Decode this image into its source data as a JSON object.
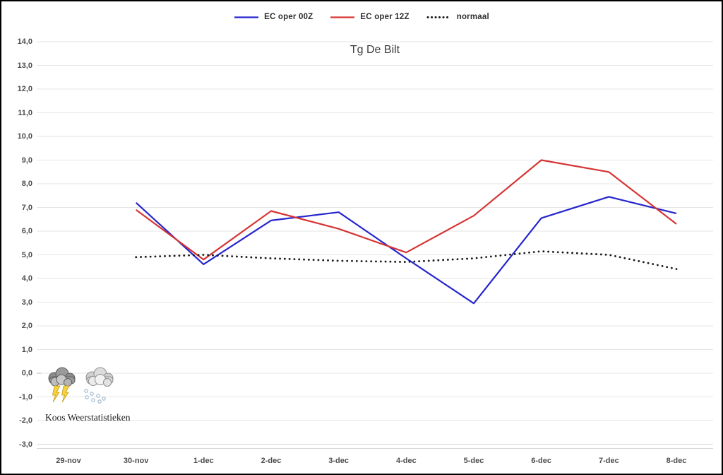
{
  "window": {
    "background": "#ffffff",
    "border_color": "#000000"
  },
  "legend": {
    "items": [
      {
        "name": "EC oper 00Z",
        "color": "#2525cd",
        "style": "solid"
      },
      {
        "name": "EC oper 12Z",
        "color": "#d63434",
        "style": "solid"
      },
      {
        "name": "normaal",
        "color": "#1a1a1a",
        "style": "dotted"
      }
    ]
  },
  "branding": {
    "credit": "Koos Weerstatistieken",
    "icons": [
      {
        "name": "thunderstorm-icon"
      },
      {
        "name": "snow-shower-icon"
      }
    ]
  },
  "chart_data": {
    "type": "line",
    "title": "Tg De Bilt",
    "xlabel": "",
    "ylabel": "",
    "categories": [
      "29-nov",
      "30-nov",
      "1-dec",
      "2-dec",
      "3-dec",
      "4-dec",
      "5-dec",
      "6-dec",
      "7-dec",
      "8-dec"
    ],
    "series": [
      {
        "name": "EC oper 00Z",
        "color": "#2525cd",
        "style": "solid",
        "values": [
          null,
          7.2,
          4.6,
          6.45,
          6.8,
          4.85,
          2.95,
          6.55,
          7.45,
          6.75
        ]
      },
      {
        "name": "EC oper 12Z",
        "color": "#d63434",
        "style": "solid",
        "values": [
          null,
          6.9,
          4.8,
          6.85,
          6.1,
          5.1,
          6.65,
          9.0,
          8.5,
          6.3
        ]
      },
      {
        "name": "normaal",
        "color": "#1a1a1a",
        "style": "dotted",
        "values": [
          null,
          4.9,
          5.0,
          4.85,
          4.75,
          4.7,
          4.85,
          5.15,
          5.0,
          4.4
        ]
      }
    ],
    "ylim": [
      -3.0,
      14.0
    ],
    "ytick_step": 1.0,
    "ytick_labels": [
      "14,0",
      "13,0",
      "12,0",
      "11,0",
      "10,0",
      "9,0",
      "8,0",
      "7,0",
      "6,0",
      "5,0",
      "4,0",
      "3,0",
      "2,0",
      "1,0",
      "0,0",
      "-1,0",
      "-2,0",
      "-3,0"
    ],
    "grid": true,
    "legend_position": "top"
  }
}
